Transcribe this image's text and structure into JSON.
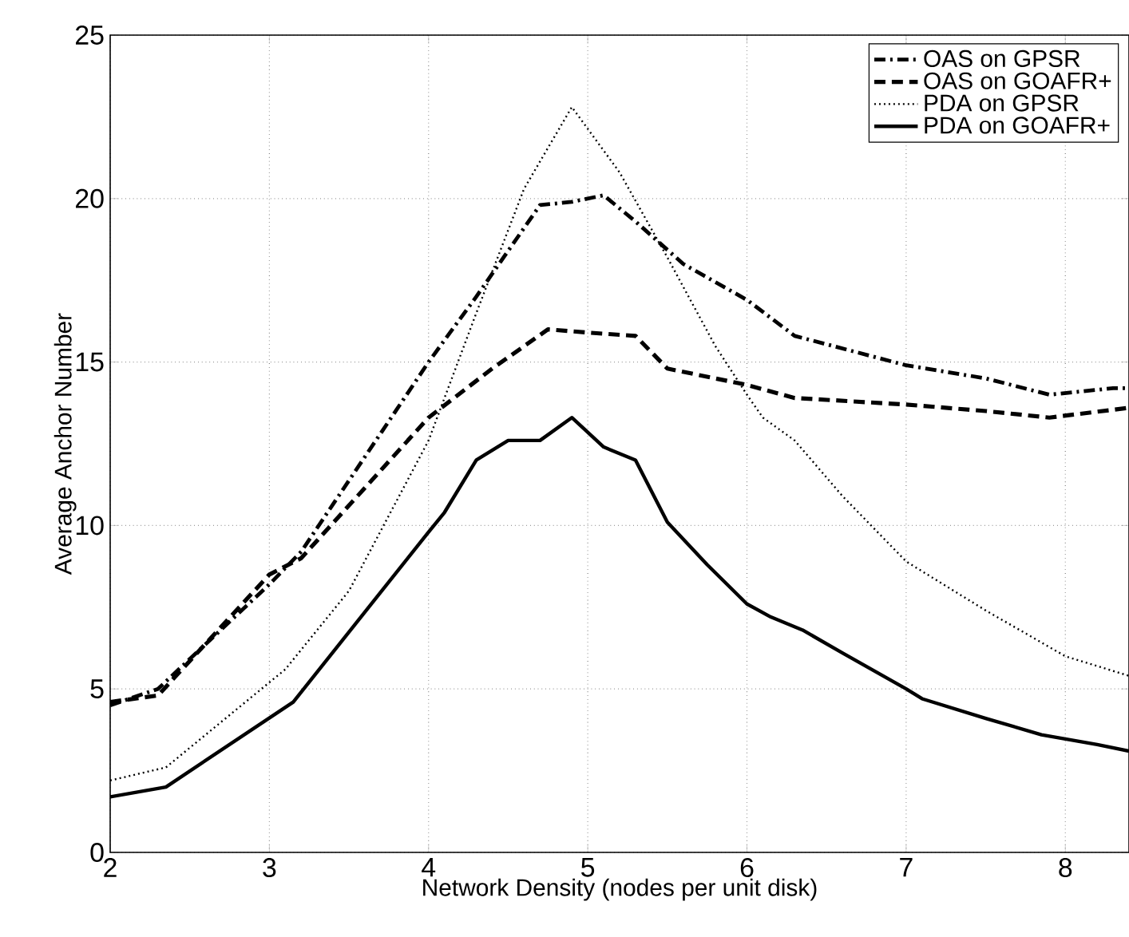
{
  "chart_data": {
    "type": "line",
    "xlabel": "Network Density (nodes per unit disk)",
    "ylabel": "Average Anchor Number",
    "xlim": [
      2,
      8.4
    ],
    "ylim": [
      0,
      25
    ],
    "xticks": [
      2,
      3,
      4,
      5,
      6,
      7,
      8
    ],
    "yticks": [
      0,
      5,
      10,
      15,
      20,
      25
    ],
    "grid": true,
    "legend": "top right",
    "marker": "none",
    "series": [
      {
        "name": "OAS on GPSR",
        "color": "#000000",
        "line_style": "dashdot",
        "x": [
          2,
          2.3,
          3.0,
          3.2,
          4.0,
          4.3,
          4.7,
          4.9,
          5.1,
          5.3,
          5.6,
          6.0,
          6.3,
          7.0,
          7.5,
          7.9,
          8.3,
          8.4
        ],
        "values": [
          4.5,
          5.0,
          8.2,
          9.2,
          15.0,
          17.0,
          19.8,
          19.9,
          20.1,
          19.3,
          18.0,
          16.9,
          15.8,
          14.9,
          14.5,
          14.0,
          14.2,
          14.2
        ]
      },
      {
        "name": "OAS on GOAFR+",
        "color": "#000000",
        "line_style": "dashed",
        "x": [
          2,
          2.3,
          3.0,
          3.2,
          4.0,
          4.4,
          4.75,
          5.0,
          5.3,
          5.5,
          5.9,
          6.0,
          6.3,
          7.0,
          7.5,
          7.9,
          8.4
        ],
        "values": [
          4.6,
          4.8,
          8.5,
          9.0,
          13.3,
          14.8,
          16.0,
          15.9,
          15.8,
          14.8,
          14.4,
          14.3,
          13.9,
          13.7,
          13.5,
          13.3,
          13.6
        ]
      },
      {
        "name": "PDA on GPSR",
        "color": "#000000",
        "line_style": "dotted",
        "x": [
          2,
          2.35,
          3.1,
          3.5,
          4.0,
          4.3,
          4.6,
          4.9,
          5.2,
          5.5,
          5.8,
          6.0,
          6.1,
          6.3,
          6.6,
          7.0,
          7.5,
          8.0,
          8.4
        ],
        "values": [
          2.2,
          2.6,
          5.6,
          8.0,
          12.6,
          16.5,
          20.3,
          22.8,
          20.8,
          18.2,
          15.5,
          14.0,
          13.3,
          12.6,
          10.9,
          8.9,
          7.4,
          6.0,
          5.4
        ]
      },
      {
        "name": "PDA on GOAFR+",
        "color": "#000000",
        "line_style": "solid",
        "x": [
          2,
          2.35,
          3.15,
          4.0,
          4.1,
          4.3,
          4.5,
          4.7,
          4.9,
          5.1,
          5.3,
          5.5,
          5.75,
          6.0,
          6.15,
          6.35,
          6.6,
          7.0,
          7.1,
          7.5,
          7.85,
          8.2,
          8.4
        ],
        "values": [
          1.7,
          2.0,
          4.6,
          9.8,
          10.4,
          12.0,
          12.6,
          12.6,
          13.3,
          12.4,
          12.0,
          10.1,
          8.8,
          7.6,
          7.2,
          6.8,
          6.1,
          5.0,
          4.7,
          4.1,
          3.6,
          3.3,
          3.1
        ]
      }
    ]
  }
}
